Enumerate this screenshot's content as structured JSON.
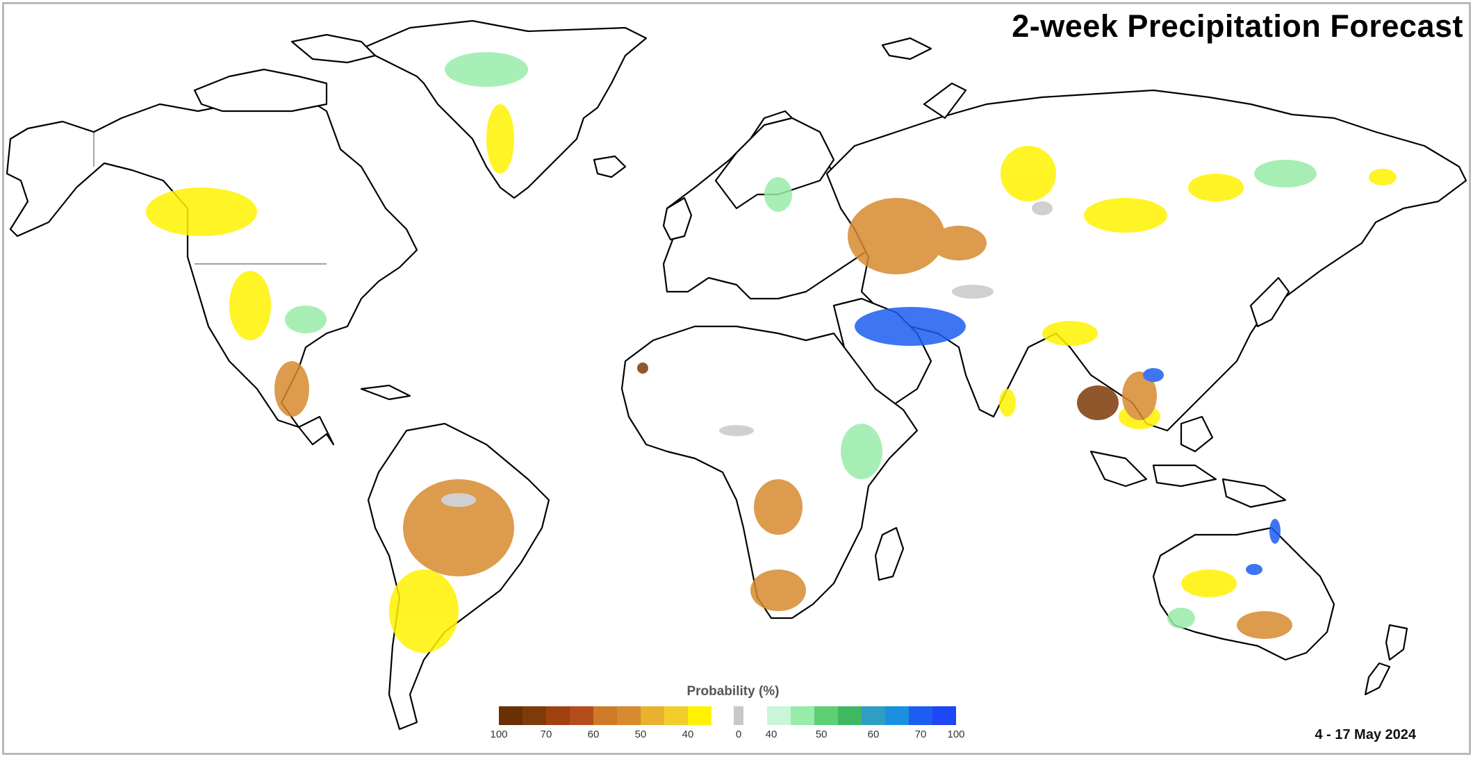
{
  "title": "2-week Precipitation Forecast",
  "date_range": "4 - 17 May 2024",
  "legend": {
    "title": "Probability (%)",
    "dry_colors": [
      "#6b2f06",
      "#7e3a08",
      "#a1400f",
      "#b54c1b",
      "#cf7a27",
      "#d78a2f",
      "#e8b22f",
      "#f2ce2b",
      "#fff200"
    ],
    "neutral_color": "#c8c8c8",
    "wet_colors": [
      "#c9f5d9",
      "#98eca9",
      "#5fcf73",
      "#3fb863",
      "#2e9ec5",
      "#1991e0",
      "#1d5df0",
      "#1e47f5"
    ],
    "dry_ticks": [
      "100",
      "70",
      "60",
      "50",
      "40"
    ],
    "neutral_tick": "0",
    "wet_ticks": [
      "40",
      "50",
      "60",
      "70",
      "100"
    ]
  },
  "map": {
    "coastline_color": "#000000",
    "ocean_color": "#ffffff",
    "land_color": "#ffffff"
  }
}
